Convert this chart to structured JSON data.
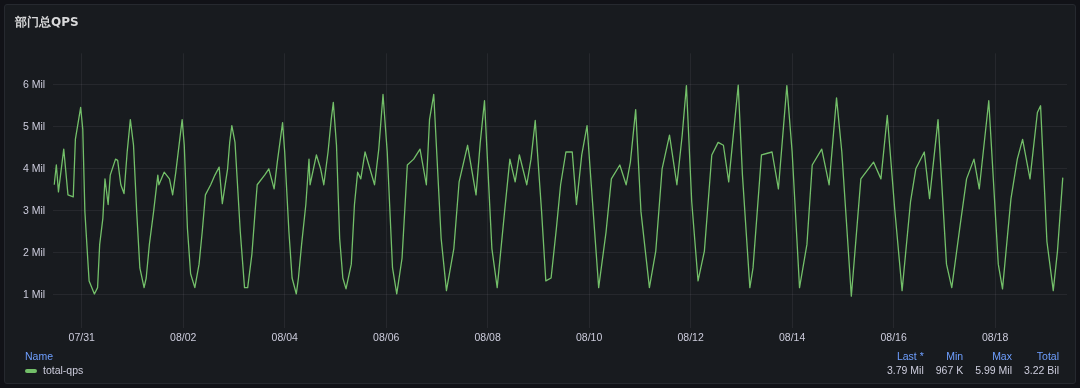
{
  "chart_data": {
    "type": "line",
    "title": "部门总QPS",
    "legend": "bottom",
    "grid": true,
    "marker": "none",
    "line_style": "solid",
    "xlim": [
      "--07-30T10:30",
      "--08-19T10:00"
    ],
    "xticks": [
      {
        "value": "--07-31",
        "label": "07/31"
      },
      {
        "value": "--08-02",
        "label": "08/02"
      },
      {
        "value": "--08-04",
        "label": "08/04"
      },
      {
        "value": "--08-06",
        "label": "08/06"
      },
      {
        "value": "--08-08",
        "label": "08/08"
      },
      {
        "value": "--08-10",
        "label": "08/10"
      },
      {
        "value": "--08-12",
        "label": "08/12"
      },
      {
        "value": "--08-14",
        "label": "08/14"
      },
      {
        "value": "--08-16",
        "label": "08/16"
      },
      {
        "value": "--08-18",
        "label": "08/18"
      }
    ],
    "ylim": [
      0.2,
      6.75
    ],
    "yticks": [
      {
        "value": 1,
        "label": "1 Mil"
      },
      {
        "value": 2,
        "label": "2 Mil"
      },
      {
        "value": 3,
        "label": "3 Mil"
      },
      {
        "value": 4,
        "label": "4 Mil"
      },
      {
        "value": 5,
        "label": "5 Mil"
      },
      {
        "value": 6,
        "label": "6 Mil"
      }
    ],
    "annotations": [
      "Name",
      "Last *",
      "Min",
      "Max",
      "Total",
      "3.79 Mil",
      "967 K",
      "5.99 Mil",
      "3.22 Bil"
    ],
    "x": [
      "--07-30T11:00",
      "--07-30T12:00",
      "--07-30T13:00",
      "--07-30T15:30",
      "--07-30T17:30",
      "--07-30T20:00",
      "--07-30T21:00",
      "--07-30T23:30",
      "--07-31T00:30",
      "--07-31T01:30",
      "--07-31T03:00",
      "--07-31T03:30",
      "--07-31T06:00",
      "--07-31T07:30",
      "--07-31T08:30",
      "--07-31T10:00",
      "--07-31T11:00",
      "--07-31T12:30",
      "--07-31T13:30",
      "--07-31T16:00",
      "--07-31T17:00",
      "--07-31T18:30",
      "--07-31T20:00",
      "--07-31T21:30",
      "--07-31T23:00",
      "--08-01T00:30",
      "--08-01T02:00",
      "--08-01T03:30",
      "--08-01T05:30",
      "--08-01T06:30",
      "--08-01T08:00",
      "--08-01T10:00",
      "--08-01T12:00",
      "--08-01T12:30",
      "--08-01T15:00",
      "--08-01T17:30",
      "--08-01T19:00",
      "--08-01T20:30",
      "--08-01T23:30",
      "--08-02T00:30",
      "--08-02T02:00",
      "--08-02T03:30",
      "--08-02T05:30",
      "--08-02T07:30",
      "--08-02T09:00",
      "--08-02T10:30",
      "--08-02T13:00",
      "--08-02T15:00",
      "--08-02T17:00",
      "--08-02T18:30",
      "--08-02T21:00",
      "--08-02T22:00",
      "--08-02T23:00",
      "--08-03T00:30",
      "--08-03T03:00",
      "--08-03T05:00",
      "--08-03T06:30",
      "--08-03T08:30",
      "--08-03T10:00",
      "--08-03T11:00",
      "--08-03T14:30",
      "--08-03T16:30",
      "--08-03T19:00",
      "--08-03T20:30",
      "--08-03T23:00",
      "--08-04T00:00",
      "--08-04T02:00",
      "--08-04T03:30",
      "--08-04T05:30",
      "--08-04T06:30",
      "--08-04T08:00",
      "--08-04T10:00",
      "--08-04T11:30",
      "--08-04T12:00",
      "--08-04T15:00",
      "--08-04T17:00",
      "--08-04T18:30",
      "--08-04T20:30",
      "--08-04T22:00",
      "--08-04T23:00",
      "--08-05T00:30",
      "--08-05T02:00",
      "--08-05T03:30",
      "--08-05T05:00",
      "--08-05T07:30",
      "--08-05T09:00",
      "--08-05T10:30",
      "--08-05T12:00",
      "--08-05T14:00",
      "--08-05T18:30",
      "--08-05T20:30",
      "--08-05T22:30",
      "--08-06T00:30",
      "--08-06T03:00",
      "--08-06T05:00",
      "--08-06T07:30",
      "--08-06T10:00",
      "--08-06T13:00",
      "--08-06T16:00",
      "--08-06T19:00",
      "--08-06T20:30",
      "--08-06T22:30",
      "--08-07T02:00",
      "--08-07T04:30",
      "--08-07T08:00",
      "--08-07T10:30",
      "--08-07T14:30",
      "--08-07T18:30",
      "--08-07T20:30",
      "--08-07T22:30",
      "--08-08T02:00",
      "--08-08T04:30",
      "--08-08T08:00",
      "--08-08T10:30",
      "--08-08T13:00",
      "--08-08T15:00",
      "--08-08T18:30",
      "--08-08T20:30",
      "--08-08T22:30",
      "--08-09T01:30",
      "--08-09T03:30",
      "--08-09T06:00",
      "--08-09T08:30",
      "--08-09T10:30",
      "--08-09T13:00",
      "--08-09T16:00",
      "--08-09T18:00",
      "--08-09T20:30",
      "--08-09T23:00",
      "--08-10T01:00",
      "--08-10T04:30",
      "--08-10T08:00",
      "--08-10T10:30",
      "--08-10T14:30",
      "--08-10T17:30",
      "--08-10T19:30",
      "--08-10T22:00",
      "--08-11T00:30",
      "--08-11T04:30",
      "--08-11T07:30",
      "--08-11T10:30",
      "--08-11T14:00",
      "--08-11T17:30",
      "--08-11T20:00",
      "--08-11T22:00",
      "--08-12T00:30",
      "--08-12T03:30",
      "--08-12T06:30",
      "--08-12T10:00",
      "--08-12T13:00",
      "--08-12T15:30",
      "--08-12T18:00",
      "--08-12T22:30",
      "--08-13T00:30",
      "--08-13T04:00",
      "--08-13T05:30",
      "--08-13T09:30",
      "--08-13T14:30",
      "--08-13T17:30",
      "--08-13T21:30",
      "--08-14T00:00",
      "--08-14T03:30",
      "--08-14T07:00",
      "--08-14T09:30",
      "--08-14T14:00",
      "--08-14T17:30",
      "--08-14T21:00",
      "--08-14T23:30",
      "--08-15T04:00",
      "--08-15T08:30",
      "--08-15T14:30",
      "--08-15T18:00",
      "--08-15T21:00",
      "--08-16T00:30",
      "--08-16T04:00",
      "--08-16T08:00",
      "--08-16T10:30",
      "--08-16T14:30",
      "--08-16T17:00",
      "--08-16T21:00",
      "--08-17T01:00",
      "--08-17T03:30",
      "--08-17T07:30",
      "--08-17T10:30",
      "--08-17T14:00",
      "--08-17T16:30",
      "--08-17T21:00",
      "--08-18T01:30",
      "--08-18T03:30",
      "--08-18T07:30",
      "--08-18T10:30",
      "--08-18T13:00",
      "--08-18T16:30",
      "--08-18T20:00",
      "--08-18T21:30",
      "--08-19T00:30",
      "--08-19T03:30",
      "--08-19T05:30",
      "--08-19T08:00"
    ],
    "series": [
      {
        "name": "total-qps",
        "color": "#73bf69",
        "values": [
          3.62,
          4.09,
          3.45,
          4.47,
          3.38,
          3.33,
          4.7,
          5.46,
          4.94,
          2.98,
          1.73,
          1.33,
          1.02,
          1.17,
          2.2,
          2.82,
          3.76,
          3.15,
          3.85,
          4.23,
          4.2,
          3.62,
          3.41,
          4.4,
          5.17,
          4.56,
          2.98,
          1.64,
          1.17,
          1.4,
          2.2,
          2.98,
          3.85,
          3.62,
          3.92,
          3.76,
          3.38,
          3.92,
          5.17,
          4.56,
          2.58,
          1.5,
          1.17,
          1.73,
          2.5,
          3.38,
          3.62,
          3.85,
          4.04,
          3.17,
          4.0,
          4.63,
          5.03,
          4.63,
          2.5,
          1.17,
          1.17,
          1.97,
          2.98,
          3.62,
          3.85,
          4.0,
          3.52,
          4.16,
          5.1,
          4.4,
          2.5,
          1.4,
          1.02,
          1.4,
          2.2,
          3.15,
          4.23,
          3.62,
          4.33,
          4.0,
          3.62,
          4.4,
          5.17,
          5.58,
          4.56,
          2.34,
          1.4,
          1.14,
          1.73,
          3.15,
          3.92,
          3.76,
          4.4,
          3.62,
          4.47,
          5.77,
          4.4,
          1.64,
          1.02,
          1.87,
          4.09,
          4.23,
          4.47,
          3.62,
          5.17,
          5.77,
          2.34,
          1.1,
          2.1,
          3.69,
          4.56,
          3.38,
          4.63,
          5.62,
          2.1,
          1.17,
          2.98,
          4.23,
          3.69,
          4.33,
          3.62,
          4.23,
          5.15,
          2.98,
          1.33,
          1.4,
          2.58,
          3.62,
          4.4,
          4.4,
          3.15,
          4.33,
          5.03,
          3.62,
          1.17,
          2.5,
          3.76,
          4.09,
          3.62,
          4.16,
          5.41,
          2.98,
          1.17,
          2.04,
          4.0,
          4.8,
          3.62,
          4.8,
          5.98,
          3.22,
          1.33,
          2.04,
          4.33,
          4.63,
          4.56,
          3.69,
          5.99,
          3.85,
          1.17,
          1.64,
          4.33,
          4.4,
          3.52,
          5.98,
          4.4,
          1.17,
          2.2,
          4.09,
          4.47,
          3.62,
          5.69,
          4.4,
          0.967,
          3.76,
          4.16,
          3.76,
          5.27,
          3.05,
          1.1,
          3.22,
          4.0,
          4.4,
          3.29,
          5.17,
          1.73,
          1.17,
          2.67,
          3.76,
          4.23,
          3.52,
          5.62,
          1.73,
          1.14,
          3.29,
          4.23,
          4.7,
          3.76,
          5.34,
          5.5,
          2.27,
          1.1,
          2.04,
          3.79
        ]
      }
    ]
  }
}
